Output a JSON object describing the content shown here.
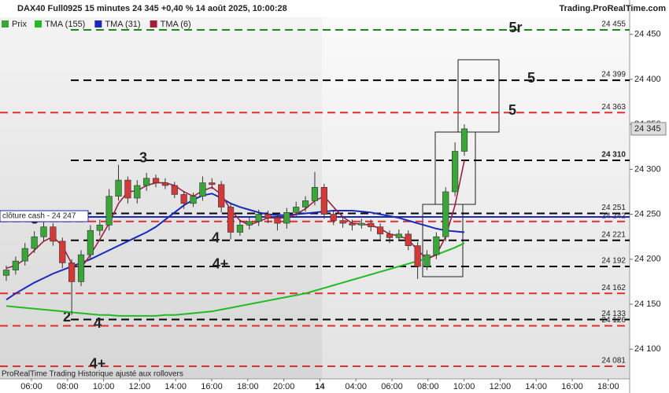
{
  "chart_data": {
    "type": "candlestick",
    "title": "DAX40 Full0925 15 minutes 24 345 +0,40 % 14 août 2025, 10:00:28",
    "source": "Trading.ProRealTime.com",
    "footer": "ProRealTime Trading  Historique ajusté aux rollovers",
    "candle_name": "Prix",
    "up_color": "#3aa63a",
    "down_color": "#d23a3a",
    "open": [
      24182,
      24188,
      24198,
      24212,
      24225,
      24236,
      24220,
      24196,
      24175,
      24205,
      24232,
      24238,
      24270,
      24288,
      24268,
      24282,
      24290,
      24285,
      24282,
      24272,
      24262,
      24270,
      24285,
      24283,
      24258,
      24230,
      24238,
      24242,
      24250,
      24246,
      24240,
      24252,
      24258,
      24265,
      24280,
      24250,
      24243,
      24240,
      24238,
      24240,
      24236,
      24228,
      24224,
      24228,
      24215,
      24192,
      24205,
      24225,
      24275,
      24320
    ],
    "high": [
      24193,
      24203,
      24218,
      24231,
      24241,
      24240,
      24224,
      24200,
      24210,
      24238,
      24244,
      24278,
      24305,
      24292,
      24288,
      24296,
      24294,
      24290,
      24286,
      24276,
      24274,
      24292,
      24290,
      24287,
      24262,
      24243,
      24247,
      24255,
      24254,
      24250,
      24257,
      24264,
      24270,
      24297,
      24284,
      24254,
      24248,
      24244,
      24245,
      24244,
      24240,
      24232,
      24233,
      24232,
      24219,
      24210,
      24230,
      24280,
      24330,
      24350
    ],
    "low": [
      24176,
      24183,
      24193,
      24207,
      24220,
      24215,
      24190,
      24138,
      24170,
      24200,
      24226,
      24232,
      24265,
      24262,
      24262,
      24276,
      24280,
      24278,
      24268,
      24256,
      24258,
      24265,
      24278,
      24252,
      24222,
      24226,
      24233,
      24237,
      24240,
      24232,
      24234,
      24247,
      24253,
      24260,
      24245,
      24238,
      24235,
      24232,
      24234,
      24231,
      24222,
      24218,
      24220,
      24210,
      24178,
      24188,
      24200,
      24220,
      24270,
      24315
    ],
    "close": [
      24188,
      24198,
      24212,
      24225,
      24236,
      24220,
      24196,
      24175,
      24205,
      24232,
      24238,
      24270,
      24288,
      24268,
      24282,
      24290,
      24285,
      24282,
      24272,
      24262,
      24270,
      24285,
      24283,
      24258,
      24230,
      24238,
      24242,
      24250,
      24246,
      24240,
      24252,
      24258,
      24265,
      24280,
      24250,
      24243,
      24240,
      24238,
      24240,
      24236,
      24228,
      24224,
      24228,
      24215,
      24192,
      24205,
      24225,
      24275,
      24320,
      24345
    ],
    "series": [
      {
        "name": "TMA (155)",
        "color": "#22bb22",
        "values": [
          24148,
          24147,
          24146,
          24145,
          24144,
          24143,
          24142,
          24141,
          24140,
          24139,
          24138,
          24138,
          24137,
          24137,
          24137,
          24137,
          24137,
          24138,
          24138,
          24139,
          24140,
          24141,
          24142,
          24144,
          24146,
          24148,
          24150,
          24152,
          24154,
          24156,
          24158,
          24160,
          24162,
          24165,
          24168,
          24171,
          24174,
          24177,
          24180,
          24183,
          24186,
          24189,
          24192,
          24195,
          24198,
          24201,
          24205,
          24209,
          24213,
          24218
        ]
      },
      {
        "name": "TMA (31)",
        "color": "#1a2ab8",
        "values": [
          24155,
          24162,
          24168,
          24174,
          24179,
          24184,
          24188,
          24192,
          24196,
          24200,
          24205,
          24210,
          24215,
          24220,
          24225,
          24230,
          24236,
          24244,
          24252,
          24260,
          24266,
          24271,
          24273,
          24268,
          24262,
          24258,
          24255,
          24252,
          24250,
          24249,
          24249,
          24250,
          24251,
          24252,
          24253,
          24254,
          24254,
          24254,
          24253,
          24252,
          24250,
          24248,
          24246,
          24243,
          24240,
          24237,
          24234,
          24232,
          24231,
          24230
        ]
      },
      {
        "name": "TMA (6)",
        "color": "#a0203c",
        "values": [
          24190,
          24193,
          24200,
          24210,
          24220,
          24225,
          24215,
          24195,
          24190,
          24205,
          24222,
          24240,
          24262,
          24275,
          24276,
          24282,
          24285,
          24285,
          24282,
          24275,
          24270,
          24276,
          24280,
          24272,
          24255,
          24243,
          24238,
          24242,
          24246,
          24246,
          24246,
          24250,
          24256,
          24265,
          24270,
          24258,
          24247,
          24240,
          24239,
          24238,
          24234,
          24228,
          24226,
          24222,
          24210,
          24200,
          24205,
          24225,
          24260,
          24310
        ]
      }
    ],
    "levels": [
      {
        "value": 24455,
        "label": "24 455",
        "color": "#1a8a1a",
        "tag": "5r"
      },
      {
        "value": 24399,
        "label": "24 399",
        "color": "#000000",
        "tag": "5"
      },
      {
        "value": 24363,
        "label": "24 363",
        "color": "#e03030",
        "tag": "5"
      },
      {
        "value": 24310,
        "label": "24 310",
        "color": "#000000",
        "tag": "3"
      },
      {
        "value": 24251,
        "label": "24 251",
        "color": "#000000"
      },
      {
        "value": 24242,
        "label": "24 242",
        "color": "#e03030",
        "tag": "3"
      },
      {
        "value": 24221,
        "label": "24 221",
        "color": "#000000",
        "tag": "4"
      },
      {
        "value": 24192,
        "label": "24 192",
        "color": "#000000",
        "tag": "4+"
      },
      {
        "value": 24162,
        "label": "24 162",
        "color": "#e03030"
      },
      {
        "value": 24133,
        "label": "24 133",
        "color": "#000000",
        "tag": "2"
      },
      {
        "value": 24126,
        "label": "24 126",
        "color": "#e03030",
        "tag": "4"
      },
      {
        "value": 24081,
        "label": "24 081",
        "color": "#e03030",
        "tag": "4+"
      }
    ],
    "cash_close": {
      "value": 24247,
      "label": "clôture cash -  24 247",
      "color": "#1a2ab8"
    },
    "last": {
      "value": 24345,
      "label": "24 345"
    },
    "xticks": [
      "06:00",
      "08:00",
      "10:00",
      "12:00",
      "14:00",
      "16:00",
      "18:00",
      "20:00",
      "14",
      "04:00",
      "06:00",
      "08:00",
      "10:00",
      "12:00",
      "14:00",
      "16:00",
      "18:00"
    ],
    "ylim": [
      24067,
      24469
    ],
    "yticks": [
      {
        "value": 24450,
        "label": "24 450"
      },
      {
        "value": 24400,
        "label": "24 400"
      },
      {
        "value": 24350,
        "label": "24 350"
      },
      {
        "value": 24300,
        "label": "24 300"
      },
      {
        "value": 24250,
        "label": "24 250"
      },
      {
        "value": 24200,
        "label": "24 200"
      },
      {
        "value": 24150,
        "label": "24 150"
      },
      {
        "value": 24100,
        "label": "24 100"
      }
    ]
  }
}
